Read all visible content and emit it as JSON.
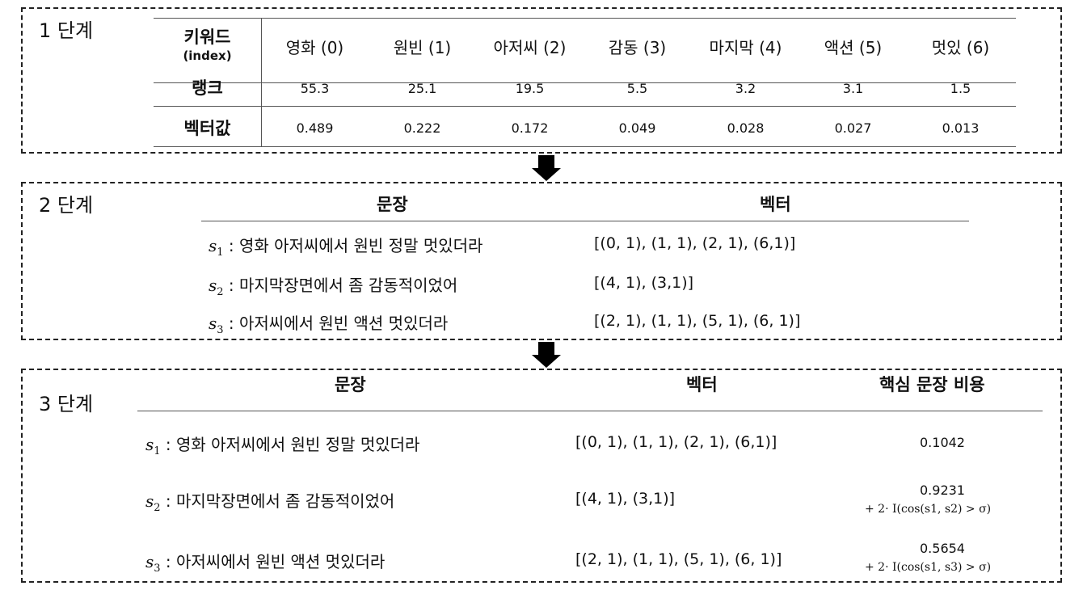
{
  "stage1": {
    "label": "1 단계",
    "rows": {
      "keyword_header": "키워드",
      "keyword_subheader": "(index)",
      "rank_header": "랭크",
      "vector_header": "벡터값"
    },
    "keywords": [
      "영화 (0)",
      "원빈 (1)",
      "아저씨 (2)",
      "감동 (3)",
      "마지막 (4)",
      "액션 (5)",
      "멋있 (6)"
    ],
    "ranks": [
      "55.3",
      "25.1",
      "19.5",
      "5.5",
      "3.2",
      "3.1",
      "1.5"
    ],
    "vector_values": [
      "0.489",
      "0.222",
      "0.172",
      "0.049",
      "0.028",
      "0.027",
      "0.013"
    ]
  },
  "stage2": {
    "label": "2 단계",
    "sentence_header": "문장",
    "vector_header": "벡터",
    "rows": [
      {
        "symbol": "s",
        "subscript": "1",
        "text": ": 영화 아저씨에서 원빈 정말 멋있더라",
        "vector": "[(0, 1), (1, 1), (2, 1), (6,1)]"
      },
      {
        "symbol": "s",
        "subscript": "2",
        "text": ": 마지막장면에서 좀 감동적이었어",
        "vector": "[(4, 1), (3,1)]"
      },
      {
        "symbol": "s",
        "subscript": "3",
        "text": ": 아저씨에서 원빈 액션 멋있더라",
        "vector": "[(2, 1), (1, 1), (5, 1), (6, 1)]"
      }
    ]
  },
  "stage3": {
    "label": "3 단계",
    "sentence_header": "문장",
    "vector_header": "벡터",
    "cost_header": "핵심 문장 비용",
    "rows": [
      {
        "symbol": "s",
        "subscript": "1",
        "text": ": 영화 아저씨에서 원빈 정말 멋있더라",
        "vector": "[(0, 1), (1, 1), (2, 1), (6,1)]",
        "cost": "0.1042",
        "formula": ""
      },
      {
        "symbol": "s",
        "subscript": "2",
        "text": ": 마지막장면에서 좀 감동적이었어",
        "vector": "[(4, 1), (3,1)]",
        "cost": "0.9231",
        "formula": "+ 2· I(cos(s1, s2) > σ)"
      },
      {
        "symbol": "s",
        "subscript": "3",
        "text": ": 아저씨에서 원빈 액션 멋있더라",
        "vector": "[(2, 1), (1, 1), (5, 1), (6, 1)]",
        "cost": "0.5654",
        "formula": "+ 2· I(cos(s1, s3) > σ)"
      }
    ]
  }
}
